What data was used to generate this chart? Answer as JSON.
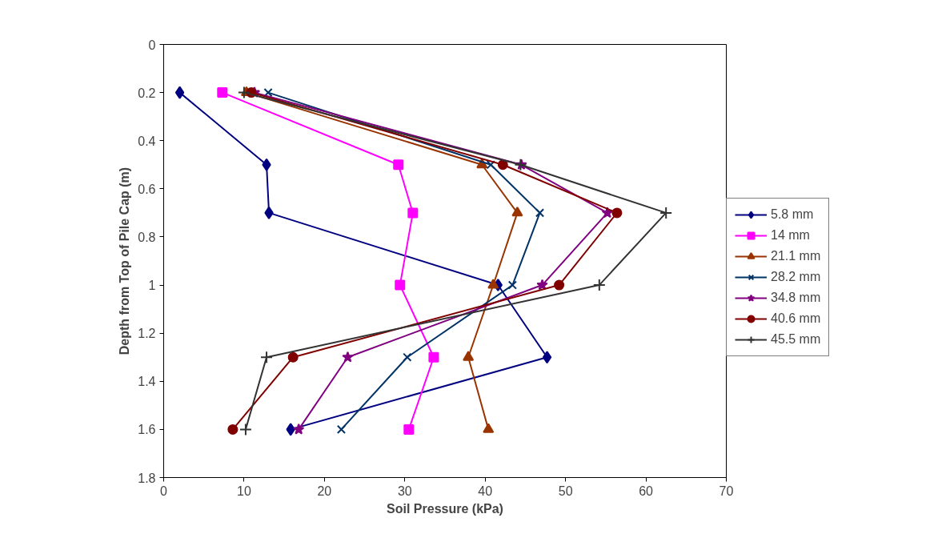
{
  "chart_data": {
    "type": "line",
    "xlabel": "Soil Pressure (kPa)",
    "ylabel": "Depth from Top of Pile Cap (m)",
    "xlim": [
      0,
      70
    ],
    "xticks": [
      0,
      10,
      20,
      30,
      40,
      50,
      60,
      70
    ],
    "ylim": [
      1.8,
      0
    ],
    "yticks": [
      0,
      0.2,
      0.4,
      0.6,
      0.8,
      1,
      1.2,
      1.4,
      1.6,
      1.8
    ],
    "grid": false,
    "legend": "right",
    "series": [
      {
        "name": "5.8 mm",
        "color": "#000080",
        "marker": "diamond",
        "x": [
          2.0,
          12.8,
          13.1,
          41.6,
          47.7,
          15.8
        ],
        "values": [
          0.2,
          0.5,
          0.7,
          1.0,
          1.3,
          1.6
        ]
      },
      {
        "name": "14 mm",
        "color": "#ff00ff",
        "marker": "square",
        "x": [
          7.3,
          29.2,
          31.0,
          29.4,
          33.6,
          30.5
        ],
        "values": [
          0.2,
          0.5,
          0.7,
          1.0,
          1.3,
          1.6
        ]
      },
      {
        "name": "21.1 mm",
        "color": "#993300",
        "marker": "triangle",
        "x": [
          10.3,
          39.6,
          44.0,
          41.0,
          37.9,
          40.4
        ],
        "values": [
          0.2,
          0.5,
          0.7,
          1.0,
          1.3,
          1.6
        ]
      },
      {
        "name": "28.2 mm",
        "color": "#003366",
        "marker": "x",
        "x": [
          13.0,
          40.7,
          46.8,
          43.4,
          30.3,
          22.1
        ],
        "values": [
          0.2,
          0.5,
          0.7,
          1.0,
          1.3,
          1.6
        ]
      },
      {
        "name": "34.8 mm",
        "color": "#800080",
        "marker": "star",
        "x": [
          11.3,
          44.5,
          55.2,
          47.1,
          22.9,
          16.8
        ],
        "values": [
          0.2,
          0.5,
          0.7,
          1.0,
          1.3,
          1.6
        ]
      },
      {
        "name": "40.6 mm",
        "color": "#800000",
        "marker": "circle",
        "x": [
          10.9,
          42.2,
          56.4,
          49.2,
          16.1,
          8.6
        ],
        "values": [
          0.2,
          0.5,
          0.7,
          1.0,
          1.3,
          1.6
        ]
      },
      {
        "name": "45.5 mm",
        "color": "#333333",
        "marker": "cross",
        "x": [
          10.0,
          44.4,
          62.5,
          54.2,
          12.8,
          10.2
        ],
        "values": [
          0.2,
          0.5,
          0.7,
          1.0,
          1.3,
          1.6
        ]
      }
    ]
  }
}
